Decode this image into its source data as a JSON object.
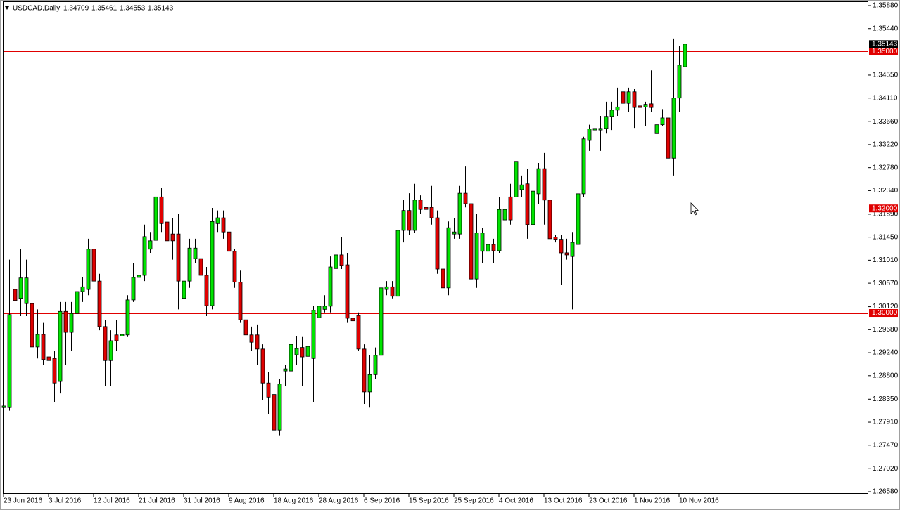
{
  "chart_data": {
    "type": "candlestick",
    "symbol": "USDCAD,Daily",
    "x": [
      "23 Jun 2016",
      null,
      null,
      null,
      null,
      null,
      null,
      null,
      "3 Jul 2016",
      null,
      null,
      null,
      null,
      null,
      null,
      null,
      "12 Jul 2016",
      null,
      null,
      null,
      null,
      null,
      null,
      null,
      "21 Jul 2016",
      null,
      null,
      null,
      null,
      null,
      null,
      null,
      "31 Jul 2016",
      null,
      null,
      null,
      null,
      null,
      null,
      null,
      "9 Aug 2016",
      null,
      null,
      null,
      null,
      null,
      null,
      null,
      "18 Aug 2016",
      null,
      null,
      null,
      null,
      null,
      null,
      null,
      "28 Aug 2016",
      null,
      null,
      null,
      null,
      null,
      null,
      null,
      "6 Sep 2016",
      null,
      null,
      null,
      null,
      null,
      null,
      null,
      "15 Sep 2016",
      null,
      null,
      null,
      null,
      null,
      null,
      null,
      "25 Sep 2016",
      null,
      null,
      null,
      null,
      null,
      null,
      null,
      "4 Oct 2016",
      null,
      null,
      null,
      null,
      null,
      null,
      null,
      "13 Oct 2016",
      null,
      null,
      null,
      null,
      null,
      null,
      null,
      "23 Oct 2016",
      null,
      null,
      null,
      null,
      null,
      null,
      null,
      "1 Nov 2016",
      null,
      null,
      null,
      null,
      null,
      null,
      null,
      "10 Nov 2016",
      null
    ],
    "open": [
      1.2819,
      1.2819,
      1.3045,
      1.3028,
      1.3018,
      1.3018,
      1.2935,
      1.2959,
      1.2916,
      1.2913,
      1.2869,
      1.3003,
      1.2963,
      1.2999,
      1.3041,
      1.3045,
      1.3122,
      1.3061,
      1.2974,
      1.2909,
      1.2958,
      1.2956,
      1.2958,
      1.3025,
      1.3068,
      1.3072,
      1.3122,
      1.3139,
      1.3222,
      1.3174,
      1.3151,
      1.3151,
      1.3028,
      1.3061,
      1.3104,
      1.3104,
      1.3072,
      1.3014,
      1.3171,
      1.3182,
      1.3155,
      1.3118,
      1.3059,
      1.2987,
      1.2958,
      1.2958,
      1.2931,
      1.2866,
      1.2844,
      1.2776,
      1.2889,
      1.2889,
      1.292,
      1.2934,
      1.2917,
      1.2913,
      1.2991,
      1.3007,
      1.3013,
      1.3085,
      1.3111,
      1.3092,
      1.299,
      1.2995,
      1.2931,
      1.2849,
      1.2882,
      1.2919,
      1.3045,
      1.305,
      1.3032,
      1.3158,
      1.3196,
      1.3158,
      1.3216,
      1.3202,
      1.3202,
      1.3182,
      1.3084,
      1.3048,
      1.3151,
      1.3151,
      1.3229,
      1.3209,
      1.3065,
      1.3118,
      1.3118,
      1.3131,
      1.3119,
      1.3178,
      1.3222,
      1.3222,
      1.3236,
      1.3247,
      1.3169,
      1.3228,
      1.3276,
      1.3216,
      1.3145,
      1.3141,
      1.3115,
      1.3108,
      1.3131,
      1.3228,
      1.333,
      1.335,
      1.335,
      1.3353,
      1.3376,
      1.3388,
      1.3423,
      1.3401,
      1.3423,
      1.3396,
      1.3394,
      1.34,
      1.3343,
      1.336,
      1.3373,
      1.3296,
      1.3411,
      1.34709
    ],
    "high": [
      1.2873,
      1.3102,
      1.3068,
      1.3122,
      1.3102,
      1.3061,
      1.3007,
      1.2981,
      1.2954,
      1.2927,
      1.3021,
      1.3021,
      1.3021,
      1.3088,
      1.3068,
      1.3142,
      1.3128,
      1.3075,
      1.2987,
      1.2967,
      1.2987,
      1.2981,
      1.3034,
      1.3095,
      1.3095,
      1.3169,
      1.3155,
      1.3243,
      1.3239,
      1.3252,
      1.3182,
      1.3189,
      1.3088,
      1.3142,
      1.3142,
      1.3142,
      1.3088,
      1.3201,
      1.3196,
      1.3196,
      1.3189,
      1.3122,
      1.3081,
      1.2994,
      1.2974,
      1.2978,
      1.294,
      1.2887,
      1.2849,
      1.2873,
      1.29,
      1.296,
      1.2956,
      1.2954,
      1.2967,
      1.3014,
      1.3021,
      1.3034,
      1.3108,
      1.3145,
      1.3145,
      1.3115,
      1.3001,
      1.3001,
      1.294,
      1.292,
      1.2934,
      1.3054,
      1.3061,
      1.3061,
      1.3169,
      1.3216,
      1.3229,
      1.3247,
      1.3225,
      1.3216,
      1.3243,
      1.3196,
      1.3135,
      1.3175,
      1.3182,
      1.3243,
      1.328,
      1.3222,
      1.3189,
      1.3162,
      1.3142,
      1.3142,
      1.3222,
      1.3236,
      1.3247,
      1.3314,
      1.3263,
      1.3276,
      1.3256,
      1.3287,
      1.3306,
      1.3222,
      1.3149,
      1.3149,
      1.3142,
      1.3155,
      1.3236,
      1.3337,
      1.336,
      1.3397,
      1.3377,
      1.3404,
      1.3404,
      1.3431,
      1.3428,
      1.3431,
      1.3428,
      1.3404,
      1.3404,
      1.3464,
      1.3384,
      1.339,
      1.3384,
      1.3525,
      1.3511,
      1.35461
    ],
    "low": [
      1.2661,
      1.2813,
      1.3007,
      1.2994,
      1.2994,
      1.2927,
      1.2913,
      1.29,
      1.29,
      1.283,
      1.2846,
      1.29,
      1.2927,
      1.2981,
      1.3021,
      1.3034,
      1.3048,
      1.2967,
      1.286,
      1.286,
      1.2927,
      1.292,
      1.2954,
      1.3021,
      1.3034,
      1.3061,
      1.3115,
      1.3128,
      1.3155,
      1.3128,
      1.3102,
      1.3007,
      1.3007,
      1.3048,
      1.3095,
      1.3034,
      1.2994,
      1.3007,
      1.3155,
      1.3142,
      1.3108,
      1.3048,
      1.2981,
      1.2954,
      1.2927,
      1.29,
      1.2833,
      1.2806,
      1.2763,
      1.2766,
      1.286,
      1.288,
      1.29,
      1.286,
      1.29,
      1.283,
      1.2981,
      1.3001,
      1.3001,
      1.3075,
      1.3084,
      1.2981,
      1.2978,
      1.2927,
      1.2826,
      1.2819,
      1.2873,
      1.2913,
      1.3034,
      1.3028,
      1.3028,
      1.3135,
      1.3149,
      1.3153,
      1.3189,
      1.3142,
      1.3169,
      1.3075,
      1.2998,
      1.3034,
      1.3142,
      1.3142,
      1.3202,
      1.3061,
      1.3048,
      1.3095,
      1.3102,
      1.3095,
      1.3115,
      1.3169,
      1.3169,
      1.3216,
      1.3222,
      1.3142,
      1.3162,
      1.3209,
      1.3169,
      1.3102,
      1.3135,
      1.3054,
      1.3102,
      1.3007,
      1.3128,
      1.3222,
      1.331,
      1.3279,
      1.331,
      1.3343,
      1.335,
      1.3377,
      1.3397,
      1.3384,
      1.3354,
      1.3364,
      1.3357,
      1.3384,
      1.3341,
      1.3357,
      1.3287,
      1.3263,
      1.3384,
      1.34553
    ],
    "close": [
      1.2822,
      1.2997,
      1.3024,
      1.3067,
      1.3067,
      1.2935,
      1.2959,
      1.2911,
      1.2909,
      1.2866,
      1.3003,
      1.2963,
      1.2999,
      1.3041,
      1.305,
      1.3122,
      1.3061,
      1.2974,
      1.2909,
      1.2947,
      1.2947,
      1.2959,
      1.3025,
      1.3068,
      1.3072,
      1.3146,
      1.3138,
      1.3222,
      1.3171,
      1.3138,
      1.3138,
      1.3061,
      1.3061,
      1.3124,
      1.3124,
      1.3072,
      1.3014,
      1.3175,
      1.3182,
      1.3155,
      1.3118,
      1.3059,
      1.2987,
      1.2958,
      1.2944,
      1.2931,
      1.2866,
      1.2839,
      1.2776,
      1.2864,
      1.2893,
      1.294,
      1.2932,
      1.2916,
      1.2936,
      1.3005,
      1.3013,
      1.3013,
      1.3088,
      1.3111,
      1.3091,
      1.299,
      1.2985,
      1.2931,
      1.2849,
      1.2882,
      1.2919,
      1.3048,
      1.305,
      1.3032,
      1.3158,
      1.3196,
      1.3158,
      1.3216,
      1.3198,
      1.3198,
      1.3182,
      1.3084,
      1.3048,
      1.3163,
      1.3155,
      1.3229,
      1.3209,
      1.3065,
      1.3153,
      1.3153,
      1.3131,
      1.3119,
      1.3198,
      1.3198,
      1.3178,
      1.329,
      1.3245,
      1.3169,
      1.3233,
      1.3276,
      1.3216,
      1.3142,
      1.3141,
      1.3115,
      1.3111,
      1.3135,
      1.3228,
      1.3333,
      1.3352,
      1.3353,
      1.3353,
      1.3376,
      1.3388,
      1.3394,
      1.3401,
      1.3423,
      1.3393,
      1.3393,
      1.3399,
      1.3393,
      1.336,
      1.3373,
      1.3296,
      1.3411,
      1.3474,
      1.35143
    ],
    "up_color": "#00e400",
    "down_color": "#e00000",
    "level_color": "#e00000",
    "ylim": [
      1.2658,
      1.3588
    ],
    "yticks": [
      {
        "value": 1.3588,
        "label": "1.35880"
      },
      {
        "value": 1.3544,
        "label": "1.35440"
      },
      {
        "value": 1.3455,
        "label": "1.34550"
      },
      {
        "value": 1.3411,
        "label": "1.34110"
      },
      {
        "value": 1.3366,
        "label": "1.33660"
      },
      {
        "value": 1.3322,
        "label": "1.33220"
      },
      {
        "value": 1.3278,
        "label": "1.32780"
      },
      {
        "value": 1.3234,
        "label": "1.32340"
      },
      {
        "value": 1.3189,
        "label": "1.31890"
      },
      {
        "value": 1.3145,
        "label": "1.31450"
      },
      {
        "value": 1.3101,
        "label": "1.31010"
      },
      {
        "value": 1.3057,
        "label": "1.30570"
      },
      {
        "value": 1.3012,
        "label": "1.30120"
      },
      {
        "value": 1.2968,
        "label": "1.29680"
      },
      {
        "value": 1.2924,
        "label": "1.29240"
      },
      {
        "value": 1.288,
        "label": "1.28800"
      },
      {
        "value": 1.2835,
        "label": "1.28350"
      },
      {
        "value": 1.2791,
        "label": "1.27910"
      },
      {
        "value": 1.2747,
        "label": "1.27470"
      },
      {
        "value": 1.2702,
        "label": "1.27020"
      },
      {
        "value": 1.2658,
        "label": "1.26580"
      }
    ],
    "levels": [
      {
        "value": 1.35,
        "label": "1.35000"
      },
      {
        "value": 1.32,
        "label": "1.32000"
      },
      {
        "value": 1.3,
        "label": "1.30000"
      }
    ]
  }
}
